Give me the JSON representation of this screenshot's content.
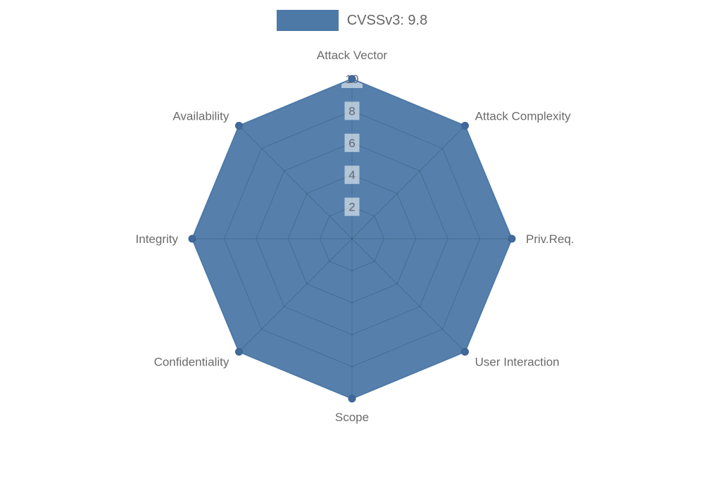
{
  "legend": {
    "label": "CVSSv3: 9.8"
  },
  "chart_data": {
    "type": "radar",
    "title": "",
    "legend": "CVSSv3: 9.8",
    "legend_position": "top-center",
    "grid": "polygon-web",
    "indicators": [
      "Attack Vector",
      "Attack Complexity",
      "Priv.Req.",
      "User Interaction",
      "Scope",
      "Confidentiality",
      "Integrity",
      "Availability"
    ],
    "axis_min": 0,
    "axis_max": 10,
    "ticks": [
      2,
      4,
      6,
      8,
      10
    ],
    "series": [
      {
        "name": "CVSSv3: 9.8",
        "values": [
          10,
          10,
          10,
          10,
          10,
          10,
          10,
          10
        ]
      }
    ],
    "colors": {
      "series": "#4d79a7",
      "series_fill": "rgba(77,121,167,0.95)",
      "point": "#41699b",
      "point_border": "#3a6292",
      "grid_line": "rgba(15,40,70,0.22)",
      "axis_label": "#6b6b6b",
      "tick_label": "#63686f",
      "tick_box": "rgba(255,255,255,0.55)",
      "legend_text": "#666666"
    }
  }
}
